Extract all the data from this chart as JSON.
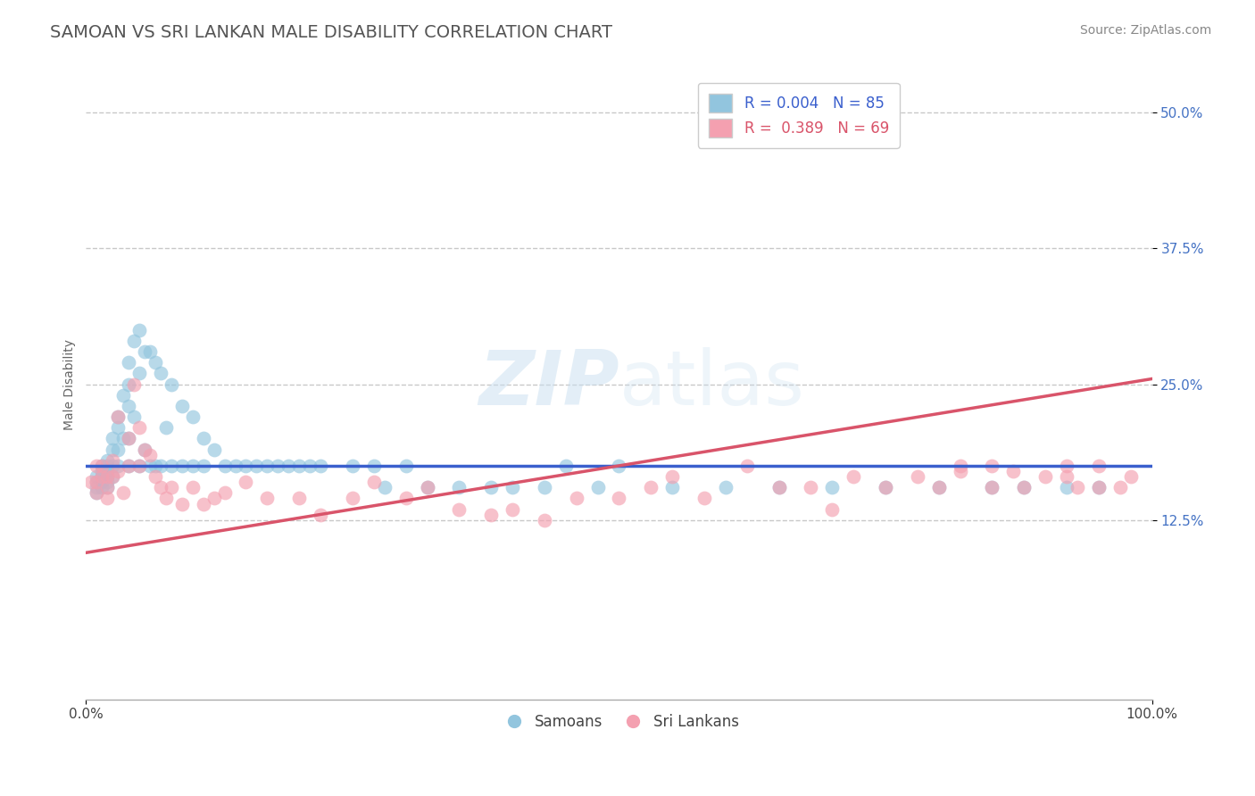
{
  "title": "SAMOAN VS SRI LANKAN MALE DISABILITY CORRELATION CHART",
  "source_text": "Source: ZipAtlas.com",
  "ylabel": "Male Disability",
  "y_tick_labels": [
    "12.5%",
    "25.0%",
    "37.5%",
    "50.0%"
  ],
  "y_tick_values": [
    0.125,
    0.25,
    0.375,
    0.5
  ],
  "xlim": [
    0.0,
    1.0
  ],
  "ylim": [
    -0.04,
    0.54
  ],
  "legend_R": [
    0.004,
    0.389
  ],
  "legend_N": [
    85,
    69
  ],
  "samoan_color": "#92C5DE",
  "srilanka_color": "#F4A0B0",
  "samoan_line_color": "#3A5FCD",
  "srilanka_line_color": "#D9546A",
  "background_color": "#FFFFFF",
  "title_fontsize": 14,
  "axis_label_fontsize": 10,
  "tick_fontsize": 11,
  "legend_fontsize": 12,
  "samoan_line_y0": 0.175,
  "samoan_line_y1": 0.175,
  "srilanka_line_y0": 0.095,
  "srilanka_line_y1": 0.255,
  "grid_color": "#BBBBBB",
  "grid_linestyle": "--",
  "watermark_color": "#C8DFF0",
  "watermark_alpha": 0.5,
  "samoan_x": [
    0.01,
    0.01,
    0.01,
    0.01,
    0.015,
    0.015,
    0.015,
    0.015,
    0.015,
    0.02,
    0.02,
    0.02,
    0.02,
    0.02,
    0.02,
    0.025,
    0.025,
    0.025,
    0.025,
    0.03,
    0.03,
    0.03,
    0.03,
    0.035,
    0.035,
    0.04,
    0.04,
    0.04,
    0.04,
    0.04,
    0.045,
    0.045,
    0.05,
    0.05,
    0.05,
    0.055,
    0.055,
    0.06,
    0.06,
    0.065,
    0.065,
    0.07,
    0.07,
    0.075,
    0.08,
    0.08,
    0.09,
    0.09,
    0.1,
    0.1,
    0.11,
    0.11,
    0.12,
    0.13,
    0.14,
    0.15,
    0.16,
    0.17,
    0.18,
    0.19,
    0.2,
    0.21,
    0.22,
    0.25,
    0.27,
    0.28,
    0.3,
    0.32,
    0.35,
    0.38,
    0.4,
    0.43,
    0.45,
    0.48,
    0.5,
    0.55,
    0.6,
    0.65,
    0.7,
    0.75,
    0.8,
    0.85,
    0.88,
    0.92,
    0.95
  ],
  "samoan_y": [
    0.165,
    0.16,
    0.155,
    0.15,
    0.175,
    0.17,
    0.165,
    0.16,
    0.155,
    0.18,
    0.175,
    0.17,
    0.165,
    0.16,
    0.155,
    0.2,
    0.19,
    0.175,
    0.165,
    0.22,
    0.21,
    0.19,
    0.175,
    0.24,
    0.2,
    0.27,
    0.25,
    0.23,
    0.2,
    0.175,
    0.29,
    0.22,
    0.3,
    0.26,
    0.175,
    0.28,
    0.19,
    0.28,
    0.175,
    0.27,
    0.175,
    0.26,
    0.175,
    0.21,
    0.25,
    0.175,
    0.23,
    0.175,
    0.22,
    0.175,
    0.2,
    0.175,
    0.19,
    0.175,
    0.175,
    0.175,
    0.175,
    0.175,
    0.175,
    0.175,
    0.175,
    0.175,
    0.175,
    0.175,
    0.175,
    0.155,
    0.175,
    0.155,
    0.155,
    0.155,
    0.155,
    0.155,
    0.175,
    0.155,
    0.175,
    0.155,
    0.155,
    0.155,
    0.155,
    0.155,
    0.155,
    0.155,
    0.155,
    0.155,
    0.155
  ],
  "srilanka_x": [
    0.005,
    0.01,
    0.01,
    0.01,
    0.015,
    0.015,
    0.02,
    0.02,
    0.02,
    0.025,
    0.025,
    0.03,
    0.03,
    0.035,
    0.04,
    0.04,
    0.045,
    0.05,
    0.05,
    0.055,
    0.06,
    0.065,
    0.07,
    0.075,
    0.08,
    0.09,
    0.1,
    0.11,
    0.12,
    0.13,
    0.15,
    0.17,
    0.2,
    0.22,
    0.25,
    0.27,
    0.3,
    0.32,
    0.35,
    0.38,
    0.4,
    0.43,
    0.46,
    0.5,
    0.53,
    0.55,
    0.58,
    0.62,
    0.65,
    0.68,
    0.7,
    0.72,
    0.75,
    0.78,
    0.8,
    0.82,
    0.85,
    0.88,
    0.9,
    0.92,
    0.93,
    0.95,
    0.97,
    0.98,
    0.82,
    0.85,
    0.87,
    0.92,
    0.95
  ],
  "srilanka_y": [
    0.16,
    0.175,
    0.16,
    0.15,
    0.175,
    0.165,
    0.165,
    0.155,
    0.145,
    0.18,
    0.165,
    0.22,
    0.17,
    0.15,
    0.2,
    0.175,
    0.25,
    0.21,
    0.175,
    0.19,
    0.185,
    0.165,
    0.155,
    0.145,
    0.155,
    0.14,
    0.155,
    0.14,
    0.145,
    0.15,
    0.16,
    0.145,
    0.145,
    0.13,
    0.145,
    0.16,
    0.145,
    0.155,
    0.135,
    0.13,
    0.135,
    0.125,
    0.145,
    0.145,
    0.155,
    0.165,
    0.145,
    0.175,
    0.155,
    0.155,
    0.135,
    0.165,
    0.155,
    0.165,
    0.155,
    0.17,
    0.175,
    0.155,
    0.165,
    0.175,
    0.155,
    0.175,
    0.155,
    0.165,
    0.175,
    0.155,
    0.17,
    0.165,
    0.155
  ]
}
